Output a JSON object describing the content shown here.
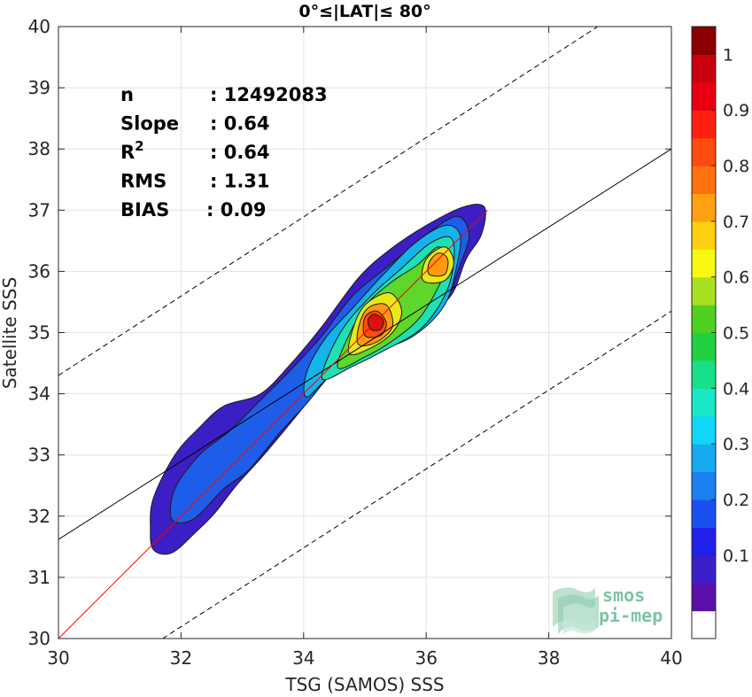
{
  "chart_data": {
    "type": "heatmap",
    "title": "0°≤|LAT|≤ 80°",
    "xlabel": "TSG (SAMOS) SSS",
    "ylabel": "Satellite SSS",
    "xlim": [
      30,
      40
    ],
    "ylim": [
      30,
      40
    ],
    "xticks": [
      "30",
      "32",
      "34",
      "36",
      "38",
      "40"
    ],
    "yticks": [
      "30",
      "31",
      "32",
      "33",
      "34",
      "35",
      "36",
      "37",
      "38",
      "39",
      "40"
    ],
    "grid": true,
    "stats": [
      {
        "label": "n",
        "value": ": 12492083"
      },
      {
        "label": "Slope",
        "value": ": 0.64"
      },
      {
        "label": "R",
        "sup": "2",
        "value": ": 0.64"
      },
      {
        "label": "RMS",
        "value": ": 1.31"
      },
      {
        "label": "BIAS",
        "value": ": 0.09"
      }
    ],
    "lines": {
      "identity": {
        "color": "#ff0000",
        "points": [
          [
            30,
            30
          ],
          [
            37,
            37
          ]
        ]
      },
      "regression": {
        "color": "#000000",
        "points": [
          [
            30,
            31.62
          ],
          [
            40,
            38.0
          ]
        ]
      },
      "upper_band": {
        "color": "#000000",
        "dashed": true,
        "points": [
          [
            30,
            34.3
          ],
          [
            38.8,
            40
          ]
        ]
      },
      "lower_band": {
        "color": "#000000",
        "dashed": true,
        "points": [
          [
            31.7,
            30
          ],
          [
            40,
            35.35
          ]
        ]
      }
    },
    "density_levels": [
      {
        "level": 0.1,
        "color": "#3b1fc4",
        "points": [
          [
            31.55,
            31.45
          ],
          [
            31.85,
            31.4
          ],
          [
            32.25,
            31.75
          ],
          [
            32.55,
            32.05
          ],
          [
            32.9,
            32.5
          ],
          [
            33.35,
            33.0
          ],
          [
            33.85,
            33.6
          ],
          [
            34.3,
            34.15
          ],
          [
            34.8,
            34.7
          ],
          [
            35.4,
            35.05
          ],
          [
            35.9,
            35.2
          ],
          [
            36.4,
            35.6
          ],
          [
            36.65,
            36.2
          ],
          [
            36.9,
            36.6
          ],
          [
            36.95,
            37.05
          ],
          [
            36.6,
            37.05
          ],
          [
            36.0,
            36.75
          ],
          [
            35.4,
            36.35
          ],
          [
            34.9,
            35.9
          ],
          [
            34.3,
            35.1
          ],
          [
            33.8,
            34.5
          ],
          [
            33.3,
            34.0
          ],
          [
            32.7,
            33.8
          ],
          [
            32.3,
            33.45
          ],
          [
            31.9,
            33.0
          ],
          [
            31.55,
            32.3
          ],
          [
            31.5,
            31.8
          ]
        ]
      },
      {
        "level": 0.2,
        "color": "#1d5de8",
        "points": [
          [
            31.85,
            31.95
          ],
          [
            32.2,
            31.95
          ],
          [
            32.7,
            32.45
          ],
          [
            33.1,
            32.75
          ],
          [
            33.6,
            33.35
          ],
          [
            34.1,
            33.9
          ],
          [
            34.6,
            34.5
          ],
          [
            35.2,
            34.85
          ],
          [
            35.9,
            35.1
          ],
          [
            36.3,
            35.5
          ],
          [
            36.55,
            36.1
          ],
          [
            36.7,
            36.6
          ],
          [
            36.5,
            36.9
          ],
          [
            36.0,
            36.6
          ],
          [
            35.4,
            36.1
          ],
          [
            34.8,
            35.6
          ],
          [
            34.3,
            34.95
          ],
          [
            33.8,
            34.4
          ],
          [
            33.3,
            33.9
          ],
          [
            32.8,
            33.4
          ],
          [
            32.3,
            33.0
          ],
          [
            31.9,
            32.45
          ]
        ]
      },
      {
        "level": 0.3,
        "color": "#14b3ea",
        "points": [
          [
            34.05,
            33.95
          ],
          [
            34.5,
            34.35
          ],
          [
            35.1,
            34.65
          ],
          [
            35.8,
            34.95
          ],
          [
            36.3,
            35.45
          ],
          [
            36.5,
            36.1
          ],
          [
            36.55,
            36.6
          ],
          [
            36.3,
            36.75
          ],
          [
            35.8,
            36.45
          ],
          [
            35.3,
            35.95
          ],
          [
            34.8,
            35.4
          ],
          [
            34.35,
            34.9
          ],
          [
            34.05,
            34.35
          ]
        ]
      },
      {
        "level": 0.4,
        "color": "#1ee0b4",
        "points": [
          [
            34.3,
            34.25
          ],
          [
            34.8,
            34.45
          ],
          [
            35.3,
            34.7
          ],
          [
            35.9,
            35.05
          ],
          [
            36.3,
            35.6
          ],
          [
            36.45,
            36.15
          ],
          [
            36.4,
            36.55
          ],
          [
            36.05,
            36.45
          ],
          [
            35.6,
            36.05
          ],
          [
            35.1,
            35.6
          ],
          [
            34.6,
            35.0
          ]
        ]
      },
      {
        "level": 0.5,
        "color": "#5fd62b",
        "points": [
          [
            34.55,
            34.45
          ],
          [
            35.0,
            34.6
          ],
          [
            35.5,
            34.9
          ],
          [
            35.9,
            35.25
          ],
          [
            36.2,
            35.75
          ],
          [
            36.35,
            36.15
          ],
          [
            36.2,
            36.4
          ],
          [
            35.85,
            36.1
          ],
          [
            35.4,
            35.8
          ],
          [
            34.95,
            35.35
          ]
        ]
      },
      {
        "level": 0.6,
        "color": "#e8e81a",
        "points": [
          [
            34.75,
            34.65
          ],
          [
            35.1,
            34.75
          ],
          [
            35.45,
            35.0
          ],
          [
            35.6,
            35.35
          ],
          [
            35.4,
            35.65
          ],
          [
            35.0,
            35.45
          ],
          [
            34.8,
            35.05
          ]
        ]
      },
      {
        "level": 0.6,
        "color": "#e8e81a",
        "points": [
          [
            35.95,
            35.85
          ],
          [
            36.3,
            35.85
          ],
          [
            36.45,
            36.15
          ],
          [
            36.3,
            36.4
          ],
          [
            36.0,
            36.2
          ]
        ]
      },
      {
        "level": 0.7,
        "color": "#ff9a10",
        "points": [
          [
            34.9,
            34.8
          ],
          [
            35.2,
            34.85
          ],
          [
            35.45,
            35.1
          ],
          [
            35.35,
            35.45
          ],
          [
            35.05,
            35.4
          ],
          [
            34.9,
            35.1
          ]
        ]
      },
      {
        "level": 0.7,
        "color": "#ff9a10",
        "points": [
          [
            36.05,
            35.95
          ],
          [
            36.3,
            35.95
          ],
          [
            36.35,
            36.2
          ],
          [
            36.2,
            36.3
          ],
          [
            36.05,
            36.15
          ]
        ]
      },
      {
        "level": 0.8,
        "color": "#ff4a10",
        "points": [
          [
            35.0,
            34.95
          ],
          [
            35.25,
            34.95
          ],
          [
            35.35,
            35.15
          ],
          [
            35.2,
            35.35
          ],
          [
            35.0,
            35.25
          ]
        ]
      },
      {
        "level": 0.9,
        "color": "#dd1010",
        "points": [
          [
            35.1,
            35.05
          ],
          [
            35.25,
            35.05
          ],
          [
            35.3,
            35.2
          ],
          [
            35.15,
            35.3
          ],
          [
            35.05,
            35.2
          ]
        ]
      }
    ],
    "colorbar": {
      "ticks": [
        "0.1",
        "0.2",
        "0.3",
        "0.4",
        "0.5",
        "0.6",
        "0.7",
        "0.8",
        "0.9",
        "1"
      ],
      "colors": [
        "#ffffff",
        "#5a10a8",
        "#3a1fc8",
        "#2020e8",
        "#1a50f0",
        "#1a80ee",
        "#18aaf0",
        "#10d6f8",
        "#18e8c8",
        "#18e088",
        "#20d040",
        "#50d020",
        "#a8e020",
        "#f8f810",
        "#ffd010",
        "#ffa010",
        "#ff7010",
        "#ff4a10",
        "#ff2010",
        "#e80010",
        "#c80010",
        "#8a0000"
      ]
    },
    "watermark": {
      "line1": "smos",
      "line2": "pi-mep"
    }
  }
}
